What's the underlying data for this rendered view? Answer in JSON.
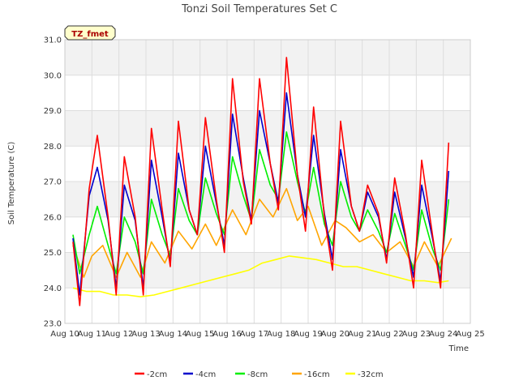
{
  "chart_data": {
    "type": "line",
    "title": "Tonzi Soil Temperatures Set C",
    "site_label": "TZ_fmet",
    "xlabel": "Time",
    "ylabel": "Soil Temperature (C)",
    "xlim": [
      10,
      25
    ],
    "ylim": [
      23.0,
      31.0
    ],
    "x_ticks": [
      10,
      11,
      12,
      13,
      14,
      15,
      16,
      17,
      18,
      19,
      20,
      21,
      22,
      23,
      24,
      25
    ],
    "x_tick_labels": [
      "Aug 10",
      "Aug 11",
      "Aug 12",
      "Aug 13",
      "Aug 14",
      "Aug 15",
      "Aug 16",
      "Aug 17",
      "Aug 18",
      "Aug 19",
      "Aug 20",
      "Aug 21",
      "Aug 22",
      "Aug 23",
      "Aug 24",
      "Aug 25"
    ],
    "y_ticks": [
      23.0,
      24.0,
      25.0,
      26.0,
      27.0,
      28.0,
      29.0,
      30.0,
      31.0
    ],
    "y_tick_labels": [
      "23.0",
      "24.0",
      "25.0",
      "26.0",
      "27.0",
      "28.0",
      "29.0",
      "30.0",
      "31.0"
    ],
    "grid": true,
    "legend_position": "bottom",
    "x_units": "day of August",
    "series": [
      {
        "name": "-2cm",
        "color": "#ff0000",
        "x": [
          10.3,
          10.55,
          10.9,
          11.2,
          11.6,
          11.9,
          12.2,
          12.6,
          12.9,
          13.2,
          13.6,
          13.9,
          14.2,
          14.6,
          14.9,
          15.2,
          15.6,
          15.9,
          16.2,
          16.6,
          16.9,
          17.2,
          17.6,
          17.9,
          18.2,
          18.6,
          18.9,
          19.2,
          19.6,
          19.9,
          20.2,
          20.6,
          20.9,
          21.2,
          21.6,
          21.9,
          22.2,
          22.6,
          22.9,
          23.2,
          23.6,
          23.9,
          24.2
        ],
        "y": [
          25.3,
          23.5,
          26.8,
          28.3,
          26.0,
          23.8,
          27.7,
          26.0,
          23.8,
          28.5,
          26.2,
          24.6,
          28.7,
          26.2,
          25.5,
          28.8,
          26.5,
          25.0,
          29.9,
          27.0,
          25.8,
          29.9,
          27.5,
          26.2,
          30.5,
          27.2,
          25.6,
          29.1,
          26.0,
          24.5,
          28.7,
          26.3,
          25.6,
          26.9,
          26.1,
          24.7,
          27.1,
          25.5,
          24.0,
          27.6,
          25.5,
          24.0,
          28.1
        ]
      },
      {
        "name": "-4cm",
        "color": "#0000cc",
        "x": [
          10.3,
          10.55,
          10.9,
          11.2,
          11.6,
          11.9,
          12.2,
          12.6,
          12.9,
          13.2,
          13.6,
          13.9,
          14.2,
          14.6,
          14.9,
          15.2,
          15.6,
          15.9,
          16.2,
          16.6,
          16.9,
          17.2,
          17.6,
          17.9,
          18.2,
          18.6,
          18.9,
          19.2,
          19.6,
          19.9,
          20.2,
          20.6,
          20.9,
          21.2,
          21.6,
          21.9,
          22.2,
          22.6,
          22.9,
          23.2,
          23.6,
          23.9,
          24.2
        ],
        "y": [
          25.4,
          23.8,
          26.6,
          27.4,
          25.9,
          24.0,
          26.9,
          25.9,
          24.0,
          27.6,
          26.0,
          24.7,
          27.8,
          26.2,
          25.5,
          28.0,
          26.4,
          25.2,
          28.9,
          27.1,
          25.9,
          29.0,
          27.5,
          26.4,
          29.5,
          27.2,
          26.0,
          28.3,
          26.1,
          24.8,
          27.9,
          26.3,
          25.6,
          26.7,
          26.0,
          24.8,
          26.7,
          25.4,
          24.3,
          26.9,
          25.4,
          24.2,
          27.3
        ]
      },
      {
        "name": "-8cm",
        "color": "#00ee00",
        "x": [
          10.3,
          10.55,
          10.9,
          11.2,
          11.6,
          11.9,
          12.2,
          12.6,
          12.9,
          13.2,
          13.6,
          13.9,
          14.2,
          14.6,
          14.9,
          15.2,
          15.6,
          15.9,
          16.2,
          16.6,
          16.9,
          17.2,
          17.6,
          17.9,
          18.2,
          18.6,
          18.9,
          19.2,
          19.6,
          19.9,
          20.2,
          20.6,
          20.9,
          21.2,
          21.6,
          21.9,
          22.2,
          22.6,
          22.9,
          23.2,
          23.6,
          23.9,
          24.2
        ],
        "y": [
          25.5,
          24.4,
          25.5,
          26.3,
          25.2,
          24.4,
          26.0,
          25.3,
          24.4,
          26.5,
          25.5,
          24.9,
          26.8,
          25.9,
          25.5,
          27.1,
          26.1,
          25.5,
          27.7,
          26.6,
          25.9,
          27.9,
          26.9,
          26.5,
          28.4,
          27.0,
          26.1,
          27.4,
          25.8,
          25.2,
          27.0,
          26.0,
          25.6,
          26.2,
          25.6,
          25.0,
          26.1,
          25.2,
          24.5,
          26.2,
          25.1,
          24.5,
          26.5
        ]
      },
      {
        "name": "-16cm",
        "color": "#ffa500",
        "x": [
          10.3,
          10.7,
          11.0,
          11.4,
          11.9,
          12.3,
          12.8,
          13.2,
          13.7,
          14.2,
          14.7,
          15.2,
          15.6,
          16.2,
          16.7,
          17.2,
          17.7,
          18.2,
          18.6,
          19.0,
          19.5,
          20.0,
          20.4,
          20.9,
          21.4,
          21.9,
          22.4,
          22.9,
          23.3,
          23.8,
          24.3
        ],
        "y": [
          25.2,
          24.3,
          24.9,
          25.2,
          24.3,
          25.0,
          24.3,
          25.3,
          24.7,
          25.6,
          25.1,
          25.8,
          25.2,
          26.2,
          25.5,
          26.5,
          26.0,
          26.8,
          25.9,
          26.3,
          25.2,
          25.9,
          25.7,
          25.3,
          25.5,
          25.0,
          25.3,
          24.6,
          25.3,
          24.6,
          25.4
        ]
      },
      {
        "name": "-32cm",
        "color": "#ffff00",
        "x": [
          10.3,
          10.8,
          11.3,
          11.8,
          12.3,
          12.8,
          13.3,
          13.8,
          14.3,
          14.8,
          15.3,
          15.8,
          16.3,
          16.8,
          17.3,
          17.8,
          18.3,
          18.8,
          19.3,
          19.8,
          20.3,
          20.8,
          21.3,
          21.8,
          22.3,
          22.8,
          23.3,
          23.8,
          24.2
        ],
        "y": [
          24.0,
          23.9,
          23.9,
          23.8,
          23.8,
          23.75,
          23.8,
          23.9,
          24.0,
          24.1,
          24.2,
          24.3,
          24.4,
          24.5,
          24.7,
          24.8,
          24.9,
          24.85,
          24.8,
          24.7,
          24.6,
          24.6,
          24.5,
          24.4,
          24.3,
          24.2,
          24.2,
          24.15,
          24.2
        ]
      }
    ]
  }
}
